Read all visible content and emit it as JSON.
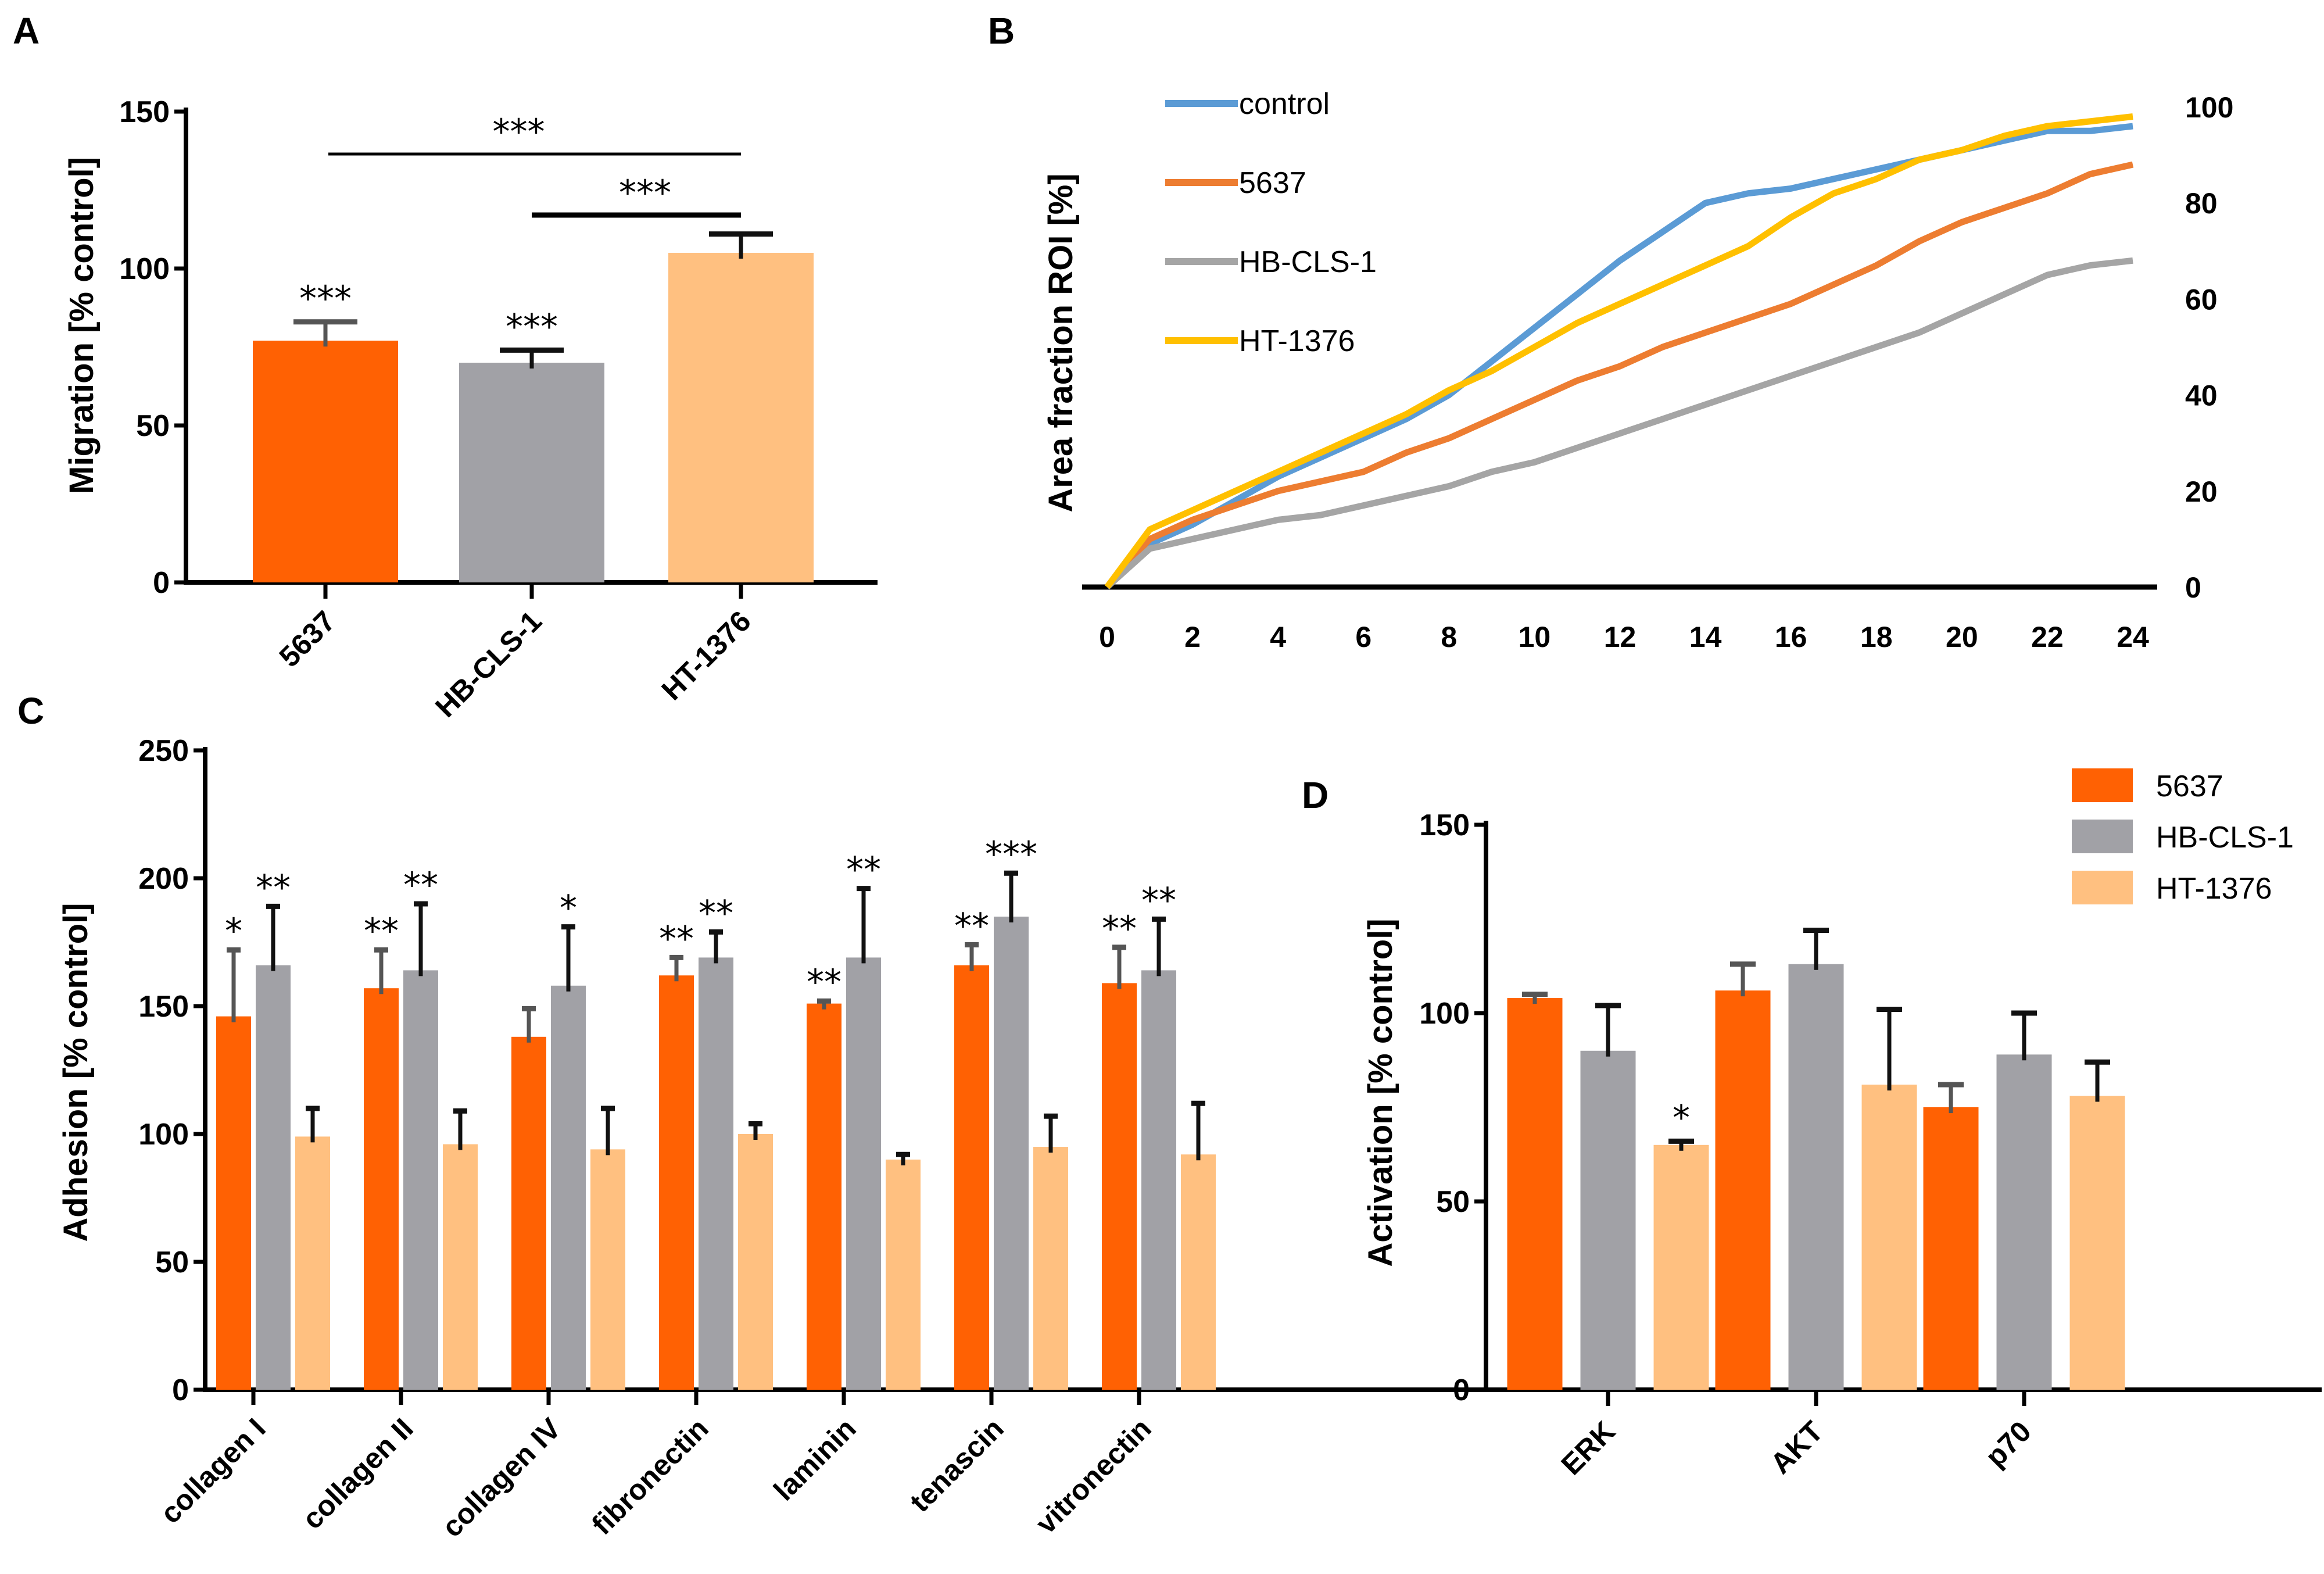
{
  "figure": {
    "panel_letters": [
      "A",
      "B",
      "C",
      "D"
    ]
  },
  "chart_data": [
    {
      "id": "A",
      "type": "bar",
      "title": "",
      "xlabel": "",
      "ylabel": "Migration [% control]",
      "ylim": [
        0,
        150
      ],
      "yticks": [
        0,
        50,
        100,
        150
      ],
      "categories": [
        "5637",
        "HB-CLS-1",
        "HT-1376"
      ],
      "values": [
        77,
        70,
        105
      ],
      "errors": [
        6,
        4,
        6
      ],
      "colors": [
        "#ff6103",
        "#a1a1a6",
        "#ffc080"
      ],
      "bar_annotations": [
        "***",
        "***",
        ""
      ],
      "comparisons": [
        {
          "from": "5637",
          "to": "HT-1376",
          "label": "***"
        },
        {
          "from": "HB-CLS-1",
          "to": "HT-1376",
          "label": "***"
        }
      ]
    },
    {
      "id": "B",
      "type": "line",
      "title": "",
      "xlabel": "",
      "ylabel": "Area fraction ROI [%]",
      "xlim": [
        0,
        24
      ],
      "ylim": [
        0,
        100
      ],
      "xticks": [
        0,
        2,
        4,
        6,
        8,
        10,
        12,
        14,
        16,
        18,
        20,
        22,
        24
      ],
      "yticks": [
        0,
        20,
        40,
        60,
        80,
        100
      ],
      "y_axis_side": "right",
      "legend_position": "top-left",
      "x": [
        0,
        1,
        2,
        3,
        4,
        5,
        6,
        7,
        8,
        9,
        10,
        11,
        12,
        13,
        14,
        15,
        16,
        17,
        18,
        19,
        20,
        21,
        22,
        23,
        24
      ],
      "series": [
        {
          "name": "control",
          "color": "#5b9bd5",
          "values": [
            0,
            9,
            13,
            18,
            23,
            27,
            31,
            35,
            40,
            47,
            54,
            61,
            68,
            74,
            80,
            82,
            83,
            85,
            87,
            89,
            91,
            93,
            95,
            95,
            96
          ]
        },
        {
          "name": "5637",
          "color": "#ed7d31",
          "values": [
            0,
            10,
            14,
            17,
            20,
            22,
            24,
            28,
            31,
            35,
            39,
            43,
            46,
            50,
            53,
            56,
            59,
            63,
            67,
            72,
            76,
            79,
            82,
            86,
            88
          ]
        },
        {
          "name": "HB-CLS-1",
          "color": "#a5a5a5",
          "values": [
            0,
            8,
            10,
            12,
            14,
            15,
            17,
            19,
            21,
            24,
            26,
            29,
            32,
            35,
            38,
            41,
            44,
            47,
            50,
            53,
            57,
            61,
            65,
            67,
            68
          ]
        },
        {
          "name": "HT-1376",
          "color": "#ffc000",
          "values": [
            0,
            12,
            16,
            20,
            24,
            28,
            32,
            36,
            41,
            45,
            50,
            55,
            59,
            63,
            67,
            71,
            77,
            82,
            85,
            89,
            91,
            94,
            96,
            97,
            98
          ]
        }
      ]
    },
    {
      "id": "C",
      "type": "bar",
      "title": "",
      "xlabel": "",
      "ylabel": "Adhesion [% control]",
      "ylim": [
        0,
        250
      ],
      "yticks": [
        0,
        50,
        100,
        150,
        200,
        250
      ],
      "categories": [
        "collagen I",
        "collagen II",
        "collagen IV",
        "fibronectin",
        "laminin",
        "tenascin",
        "vitronectin"
      ],
      "series": [
        {
          "name": "5637",
          "color": "#ff6103",
          "values": [
            146,
            157,
            138,
            162,
            151,
            166,
            159
          ],
          "errors": [
            26,
            15,
            11,
            7,
            1,
            8,
            14
          ],
          "annotations": [
            "*",
            "**",
            "",
            "**",
            "**",
            "**",
            "**"
          ]
        },
        {
          "name": "HB-CLS-1",
          "color": "#a1a1a6",
          "values": [
            166,
            164,
            158,
            169,
            169,
            185,
            164
          ],
          "errors": [
            23,
            26,
            23,
            10,
            27,
            17,
            20
          ],
          "annotations": [
            "**",
            "**",
            "*",
            "**",
            "**",
            "***",
            "**"
          ]
        },
        {
          "name": "HT-1376",
          "color": "#ffc080",
          "values": [
            99,
            96,
            94,
            100,
            90,
            95,
            92
          ],
          "errors": [
            11,
            13,
            16,
            4,
            2,
            12,
            20
          ],
          "annotations": [
            "",
            "",
            "",
            "",
            "",
            "",
            ""
          ]
        }
      ]
    },
    {
      "id": "D",
      "type": "bar",
      "title": "",
      "xlabel": "",
      "ylabel": "Activation [% control]",
      "ylim": [
        0,
        150
      ],
      "yticks": [
        0,
        50,
        100,
        150
      ],
      "legend_position": "top-right",
      "categories": [
        "ERK",
        "AKT",
        "p70"
      ],
      "series": [
        {
          "name": "5637",
          "color": "#ff6103",
          "values": [
            104,
            106,
            75
          ],
          "errors": [
            1,
            7,
            6
          ],
          "annotations": [
            "",
            "",
            ""
          ]
        },
        {
          "name": "HB-CLS-1",
          "color": "#a1a1a6",
          "values": [
            90,
            113,
            89
          ],
          "errors": [
            12,
            9,
            11
          ],
          "annotations": [
            "",
            "",
            ""
          ]
        },
        {
          "name": "HT-1376",
          "color": "#ffc080",
          "values": [
            65,
            81,
            78
          ],
          "errors": [
            1,
            20,
            9
          ],
          "annotations": [
            "*",
            "",
            ""
          ]
        }
      ]
    }
  ]
}
